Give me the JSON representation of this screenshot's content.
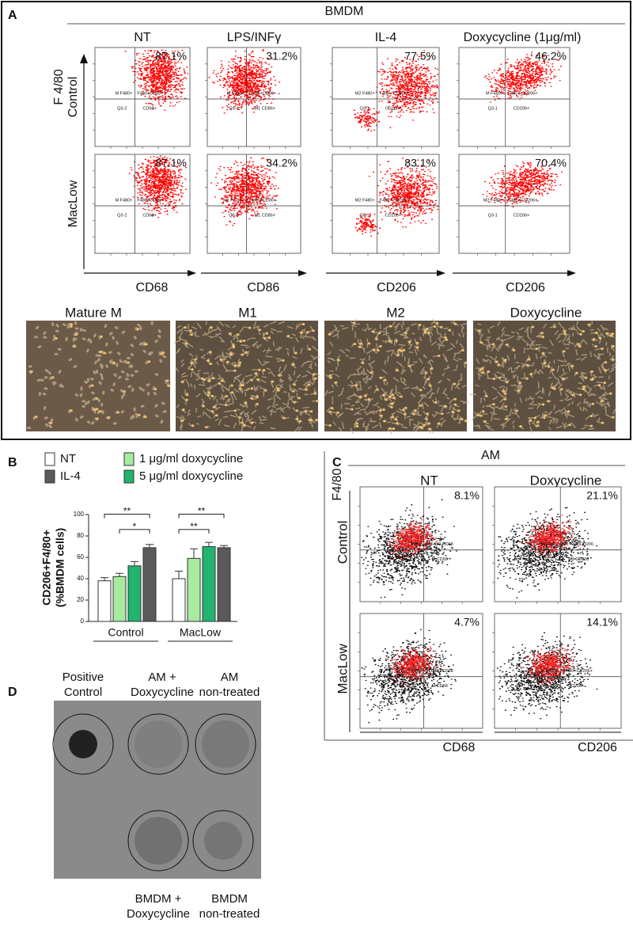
{
  "panel_a": {
    "letter": "A",
    "title": "BMDM",
    "y_axis": "F 4/80",
    "rows": [
      "Control",
      "MacLow"
    ],
    "columns": [
      "NT",
      "LPS/INFγ",
      "IL-4",
      "Doxycycline (1μg/ml)"
    ],
    "x_axes": [
      "CD68",
      "CD86",
      "CD206",
      "CD206"
    ],
    "plots": [
      [
        {
          "percent": "87.1%",
          "quadrants": [
            "M F480+",
            "F480+CD68+",
            "Q3-2",
            "CD68+"
          ]
        },
        {
          "percent": "31.2%",
          "quadrants": [
            "M F480+",
            "F4 80+CD86+",
            "Q3-4",
            "M1 CD86+"
          ]
        },
        {
          "percent": "77.5%",
          "quadrants": [
            "M2 F480+",
            "F480+ CD206+",
            "Q3-1",
            "CD206+"
          ]
        },
        {
          "percent": "46.2%",
          "quadrants": [
            "M F480+",
            "F480+ CD206+",
            "Q3-1",
            "CD206+"
          ]
        }
      ],
      [
        {
          "percent": "87.1%",
          "quadrants": [
            "M F480+",
            "F480+CD68+",
            "Q3-2",
            "CD68+"
          ]
        },
        {
          "percent": "34.2%",
          "quadrants": [
            "M1 F4 80+",
            "F4 80+CD86+",
            "Q3-4",
            "M1 CD86+"
          ]
        },
        {
          "percent": "83.1%",
          "quadrants": [
            "M2 F480+",
            "F480+ CD206+",
            "Q3-1",
            "CD206+"
          ]
        },
        {
          "percent": "70.4%",
          "quadrants": [
            "M2 F480+",
            "F480+ CD206+",
            "Q3-1",
            "CD206+"
          ]
        }
      ]
    ],
    "micrographs": [
      "Mature M",
      "M1",
      "M2",
      "Doxycycline"
    ]
  },
  "chart_data": {
    "type": "bar",
    "panel_letter": "B",
    "y_label": [
      "CD206+F4/80+",
      "(%BMDM cells)"
    ],
    "categories": [
      "Control",
      "MacLow"
    ],
    "series": [
      {
        "name": "NT",
        "color": "#ffffff",
        "values": [
          38,
          40
        ],
        "errors": [
          3,
          7
        ]
      },
      {
        "name": "1 μg/ml doxycycline",
        "color": "#a6eba0",
        "values": [
          42,
          59
        ],
        "errors": [
          3,
          9
        ]
      },
      {
        "name": "5 μg/ml doxycycline",
        "color": "#22b46e",
        "values": [
          52,
          70
        ],
        "errors": [
          4,
          4
        ]
      },
      {
        "name": "IL-4",
        "color": "#5a5a5a",
        "values": [
          69,
          69
        ],
        "errors": [
          3,
          2
        ]
      }
    ],
    "ylim": [
      0,
      100
    ],
    "yticks": [
      0,
      20,
      40,
      60,
      80,
      100
    ],
    "annotations": [
      "**",
      "*",
      "**",
      "**"
    ]
  },
  "panel_c": {
    "letter": "C",
    "title": "AM",
    "y_axis": "F4/80",
    "rows": [
      "Control",
      "MacLow"
    ],
    "columns": [
      "NT",
      "Doxycycline"
    ],
    "x_axes": [
      "CD68",
      "CD206"
    ],
    "plots": [
      [
        {
          "percent": "8.1%",
          "quadrants": [
            "F480",
            "M F480 CD68",
            "Q3",
            "M CD68"
          ]
        },
        {
          "percent": "21.1%",
          "quadrants": [
            "M F480+",
            "M1 F480CD206",
            "Q3-1",
            "M2 CD206"
          ]
        }
      ],
      [
        {
          "percent": "4.7%",
          "quadrants": [
            "F480",
            "M F480 CD68",
            "Q3",
            "M CD68"
          ]
        },
        {
          "percent": "14.1%",
          "quadrants": [
            "M F480+",
            "F4 80+CD206+",
            "Q3-3",
            "CD206+"
          ]
        }
      ]
    ]
  },
  "panel_d": {
    "letter": "D",
    "top_labels": [
      [
        "Positive",
        "Control"
      ],
      [
        "AM +",
        "Doxycycline"
      ],
      [
        "AM",
        "non-treated"
      ]
    ],
    "bottom_labels": [
      [
        "BMDM +",
        "Doxycycline"
      ],
      [
        "BMDM",
        "non-treated"
      ]
    ]
  }
}
